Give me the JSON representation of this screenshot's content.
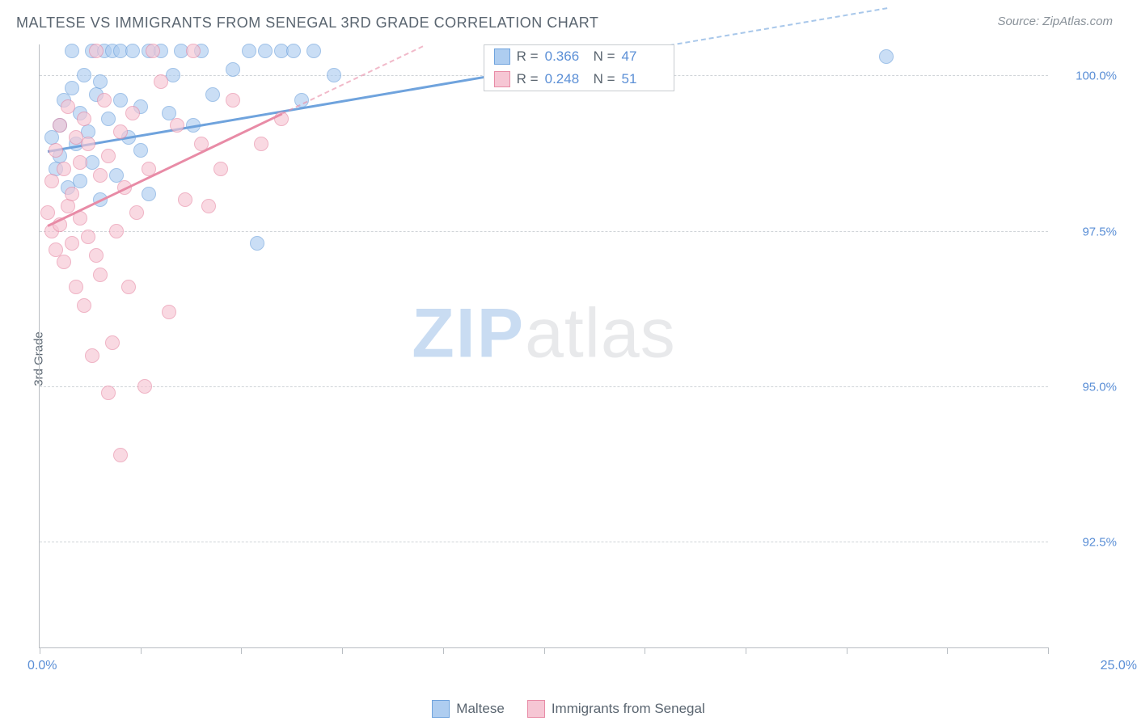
{
  "title": "MALTESE VS IMMIGRANTS FROM SENEGAL 3RD GRADE CORRELATION CHART",
  "source": "Source: ZipAtlas.com",
  "watermark": {
    "zip": "ZIP",
    "atlas": "atlas"
  },
  "chart": {
    "type": "scatter",
    "yaxis_title": "3rd Grade",
    "xlim": [
      0,
      25
    ],
    "ylim": [
      90.8,
      100.5
    ],
    "xlabel_min": "0.0%",
    "xlabel_max": "25.0%",
    "yticks": [
      {
        "value": 100.0,
        "label": "100.0%"
      },
      {
        "value": 97.5,
        "label": "97.5%"
      },
      {
        "value": 95.0,
        "label": "95.0%"
      },
      {
        "value": 92.5,
        "label": "92.5%"
      }
    ],
    "xtick_values": [
      0,
      2.5,
      5,
      7.5,
      10,
      12.5,
      15,
      17.5,
      20,
      22.5,
      25
    ],
    "background_color": "#ffffff",
    "grid_color": "#d0d4d8",
    "axis_color": "#b9bec3",
    "label_color": "#5b8fd6",
    "text_color": "#5a6570",
    "title_fontsize": 18,
    "label_fontsize": 15,
    "marker_radius": 9,
    "watermark_fontsize": 86,
    "series": [
      {
        "name": "Maltese",
        "color_fill": "#aecdf0",
        "color_stroke": "#6fa3dd",
        "R": "0.366",
        "N": "47",
        "trend": {
          "x1": 0.2,
          "y1": 98.8,
          "x2": 11.5,
          "y2": 100.05,
          "dash_to_x": 21.0
        },
        "points": [
          [
            0.3,
            99.0
          ],
          [
            0.4,
            98.5
          ],
          [
            0.5,
            99.2
          ],
          [
            0.5,
            98.7
          ],
          [
            0.6,
            99.6
          ],
          [
            0.7,
            98.2
          ],
          [
            0.8,
            100.4
          ],
          [
            0.8,
            99.8
          ],
          [
            0.9,
            98.9
          ],
          [
            1.0,
            99.4
          ],
          [
            1.0,
            98.3
          ],
          [
            1.1,
            100.0
          ],
          [
            1.2,
            99.1
          ],
          [
            1.3,
            100.4
          ],
          [
            1.3,
            98.6
          ],
          [
            1.4,
            99.7
          ],
          [
            1.5,
            99.9
          ],
          [
            1.5,
            98.0
          ],
          [
            1.6,
            100.4
          ],
          [
            1.7,
            99.3
          ],
          [
            1.8,
            100.4
          ],
          [
            1.9,
            98.4
          ],
          [
            2.0,
            99.6
          ],
          [
            2.0,
            100.4
          ],
          [
            2.2,
            99.0
          ],
          [
            2.3,
            100.4
          ],
          [
            2.5,
            98.8
          ],
          [
            2.5,
            99.5
          ],
          [
            2.7,
            100.4
          ],
          [
            2.7,
            98.1
          ],
          [
            3.0,
            100.4
          ],
          [
            3.2,
            99.4
          ],
          [
            3.3,
            100.0
          ],
          [
            3.5,
            100.4
          ],
          [
            3.8,
            99.2
          ],
          [
            4.0,
            100.4
          ],
          [
            4.3,
            99.7
          ],
          [
            4.8,
            100.1
          ],
          [
            5.2,
            100.4
          ],
          [
            5.4,
            97.3
          ],
          [
            5.6,
            100.4
          ],
          [
            6.0,
            100.4
          ],
          [
            6.3,
            100.4
          ],
          [
            6.5,
            99.6
          ],
          [
            6.8,
            100.4
          ],
          [
            7.3,
            100.0
          ],
          [
            21.0,
            100.3
          ]
        ]
      },
      {
        "name": "Immigants from Senegal",
        "legend_label": "Immigrants from Senegal",
        "color_fill": "#f6c6d4",
        "color_stroke": "#e88ba6",
        "R": "0.248",
        "N": "51",
        "trend": {
          "x1": 0.2,
          "y1": 97.6,
          "x2": 6.0,
          "y2": 99.4,
          "dash_to_x": 9.5
        },
        "points": [
          [
            0.2,
            97.8
          ],
          [
            0.3,
            97.5
          ],
          [
            0.3,
            98.3
          ],
          [
            0.4,
            97.2
          ],
          [
            0.4,
            98.8
          ],
          [
            0.5,
            97.6
          ],
          [
            0.5,
            99.2
          ],
          [
            0.6,
            97.0
          ],
          [
            0.6,
            98.5
          ],
          [
            0.7,
            97.9
          ],
          [
            0.7,
            99.5
          ],
          [
            0.8,
            97.3
          ],
          [
            0.8,
            98.1
          ],
          [
            0.9,
            96.6
          ],
          [
            0.9,
            99.0
          ],
          [
            1.0,
            97.7
          ],
          [
            1.0,
            98.6
          ],
          [
            1.1,
            96.3
          ],
          [
            1.1,
            99.3
          ],
          [
            1.2,
            97.4
          ],
          [
            1.2,
            98.9
          ],
          [
            1.3,
            95.5
          ],
          [
            1.4,
            97.1
          ],
          [
            1.4,
            100.4
          ],
          [
            1.5,
            98.4
          ],
          [
            1.5,
            96.8
          ],
          [
            1.6,
            99.6
          ],
          [
            1.7,
            94.9
          ],
          [
            1.7,
            98.7
          ],
          [
            1.8,
            95.7
          ],
          [
            1.9,
            97.5
          ],
          [
            2.0,
            99.1
          ],
          [
            2.0,
            93.9
          ],
          [
            2.1,
            98.2
          ],
          [
            2.2,
            96.6
          ],
          [
            2.3,
            99.4
          ],
          [
            2.4,
            97.8
          ],
          [
            2.6,
            95.0
          ],
          [
            2.7,
            98.5
          ],
          [
            2.8,
            100.4
          ],
          [
            3.0,
            99.9
          ],
          [
            3.2,
            96.2
          ],
          [
            3.4,
            99.2
          ],
          [
            3.6,
            98.0
          ],
          [
            3.8,
            100.4
          ],
          [
            4.0,
            98.9
          ],
          [
            4.2,
            97.9
          ],
          [
            4.5,
            98.5
          ],
          [
            4.8,
            99.6
          ],
          [
            5.5,
            98.9
          ],
          [
            6.0,
            99.3
          ]
        ]
      }
    ],
    "statbox": {
      "left_pct": 44,
      "top_pct": 0
    },
    "stat_labels": {
      "R": "R =",
      "N": "N ="
    }
  },
  "legend": {
    "items": [
      {
        "label": "Maltese",
        "fill": "#aecdf0",
        "stroke": "#6fa3dd"
      },
      {
        "label": "Immigrants from Senegal",
        "fill": "#f6c6d4",
        "stroke": "#e88ba6"
      }
    ]
  }
}
